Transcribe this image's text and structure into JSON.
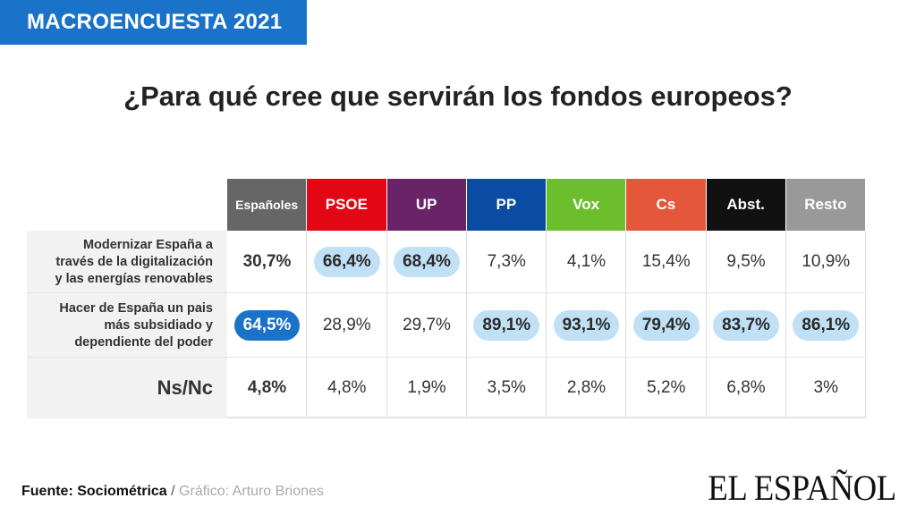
{
  "tag": "MACROENCUESTA 2021",
  "title": "¿Para qué cree que servirán los fondos europeos?",
  "colors": {
    "tag": "#1a73c8",
    "highlight": "#bfe0f5",
    "highlight_dark": "#1a73c8"
  },
  "chart_data": {
    "type": "table",
    "title": "¿Para qué cree que servirán los fondos europeos?",
    "columns": [
      {
        "label": "Españoles",
        "color": "#666666"
      },
      {
        "label": "PSOE",
        "color": "#e30613"
      },
      {
        "label": "UP",
        "color": "#6b2367"
      },
      {
        "label": "PP",
        "color": "#0a4ca3"
      },
      {
        "label": "Vox",
        "color": "#6dbe2d"
      },
      {
        "label": "Cs",
        "color": "#e4573a"
      },
      {
        "label": "Abst.",
        "color": "#111111"
      },
      {
        "label": "Resto",
        "color": "#999999"
      }
    ],
    "rows": [
      {
        "label": "Modernizar España a través de la digitalización  y  las energías renovables",
        "label_lines": [
          "Modernizar España a",
          "través de la digitalización",
          "y  las energías renovables"
        ],
        "values": [
          "30,7%",
          "66,4%",
          "68,4%",
          "7,3%",
          "4,1%",
          "15,4%",
          "9,5%",
          "10,9%"
        ],
        "highlight": [
          "bold",
          "pill",
          "pill",
          "",
          "",
          "",
          "",
          ""
        ]
      },
      {
        "label": "Hacer de España un pais más subsidiado y dependiente del poder",
        "label_lines": [
          "Hacer de España un pais",
          "más subsidiado y",
          "dependiente del poder"
        ],
        "values": [
          "64,5%",
          "28,9%",
          "29,7%",
          "89,1%",
          "93,1%",
          "79,4%",
          "83,7%",
          "86,1%"
        ],
        "highlight": [
          "pill-dark",
          "",
          "",
          "pill",
          "pill",
          "pill",
          "pill",
          "pill"
        ]
      },
      {
        "label": "Ns/Nc",
        "label_lines": [
          "Ns/Nc"
        ],
        "values": [
          "4,8%",
          "4,8%",
          "1,9%",
          "3,5%",
          "2,8%",
          "5,2%",
          "6,8%",
          "3%"
        ],
        "highlight": [
          "bold",
          "",
          "",
          "",
          "",
          "",
          "",
          ""
        ]
      }
    ]
  },
  "footer": {
    "source": "Fuente: Sociométrica",
    "separator": " / ",
    "credit": "Gráfico: Arturo Briones"
  },
  "logo": "EL ESPAÑOL"
}
